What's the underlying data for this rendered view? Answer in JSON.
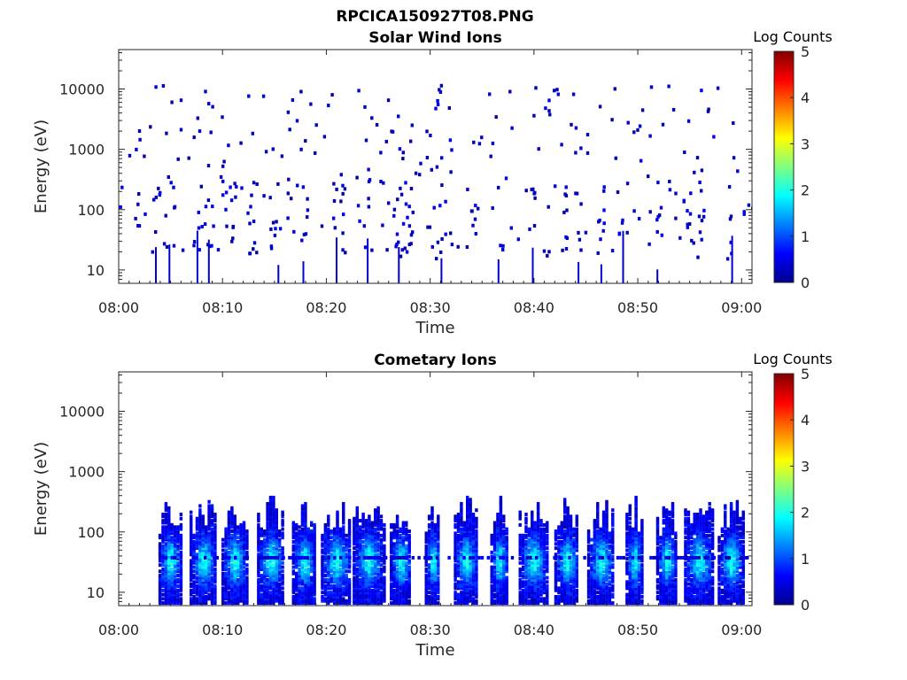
{
  "figure": {
    "title": "RPCICA150927T08.PNG"
  },
  "colormap": {
    "name": "jet",
    "stops": [
      "#00008f",
      "#0000ff",
      "#00ffff",
      "#ffff00",
      "#ff0000",
      "#800000"
    ]
  },
  "chart_data": [
    {
      "type": "heatmap",
      "title": "Solar Wind Ions",
      "xlabel": "Time",
      "ylabel": "Energy (eV)",
      "x_ticks": [
        "08:00",
        "08:10",
        "08:20",
        "08:30",
        "08:40",
        "08:50",
        "09:00"
      ],
      "x_range_minutes": [
        0,
        61
      ],
      "y_ticks": [
        "10",
        "100",
        "1000",
        "10000"
      ],
      "y_scale": "log",
      "y_range": [
        6,
        45000
      ],
      "colorbar": {
        "label": "Log Counts",
        "range": [
          0,
          5
        ],
        "ticks": [
          "0",
          "1",
          "2",
          "3",
          "4",
          "5"
        ]
      },
      "bursts_min": [
        3.5,
        4.8,
        7.5,
        8.6,
        10.5,
        11.0,
        12.5,
        14.4,
        15.3,
        17.7,
        20.9,
        21.5,
        23.9,
        26.9,
        27.7,
        31.0,
        34.2,
        36.5,
        39.8,
        43.0,
        44.2,
        46.4,
        48.5,
        51.8,
        54.5,
        56.0,
        59.0,
        60.5
      ]
    },
    {
      "type": "heatmap",
      "title": "Cometary Ions",
      "xlabel": "Time",
      "ylabel": "Energy (eV)",
      "x_ticks": [
        "08:00",
        "08:10",
        "08:20",
        "08:30",
        "08:40",
        "08:50",
        "09:00"
      ],
      "x_range_minutes": [
        0,
        61
      ],
      "y_ticks": [
        "10",
        "100",
        "1000",
        "10000"
      ],
      "y_scale": "log",
      "y_range": [
        6,
        45000
      ],
      "colorbar": {
        "label": "Log Counts",
        "range": [
          0,
          5
        ],
        "ticks": [
          "0",
          "1",
          "2",
          "3",
          "4",
          "5"
        ]
      },
      "bursts_min": [
        4.9,
        8.1,
        11.1,
        14.6,
        17.8,
        20.9,
        24.0,
        27.1,
        30.2,
        33.4,
        36.6,
        39.9,
        43.1,
        46.4,
        49.6,
        52.7,
        55.8,
        58.9
      ]
    }
  ]
}
